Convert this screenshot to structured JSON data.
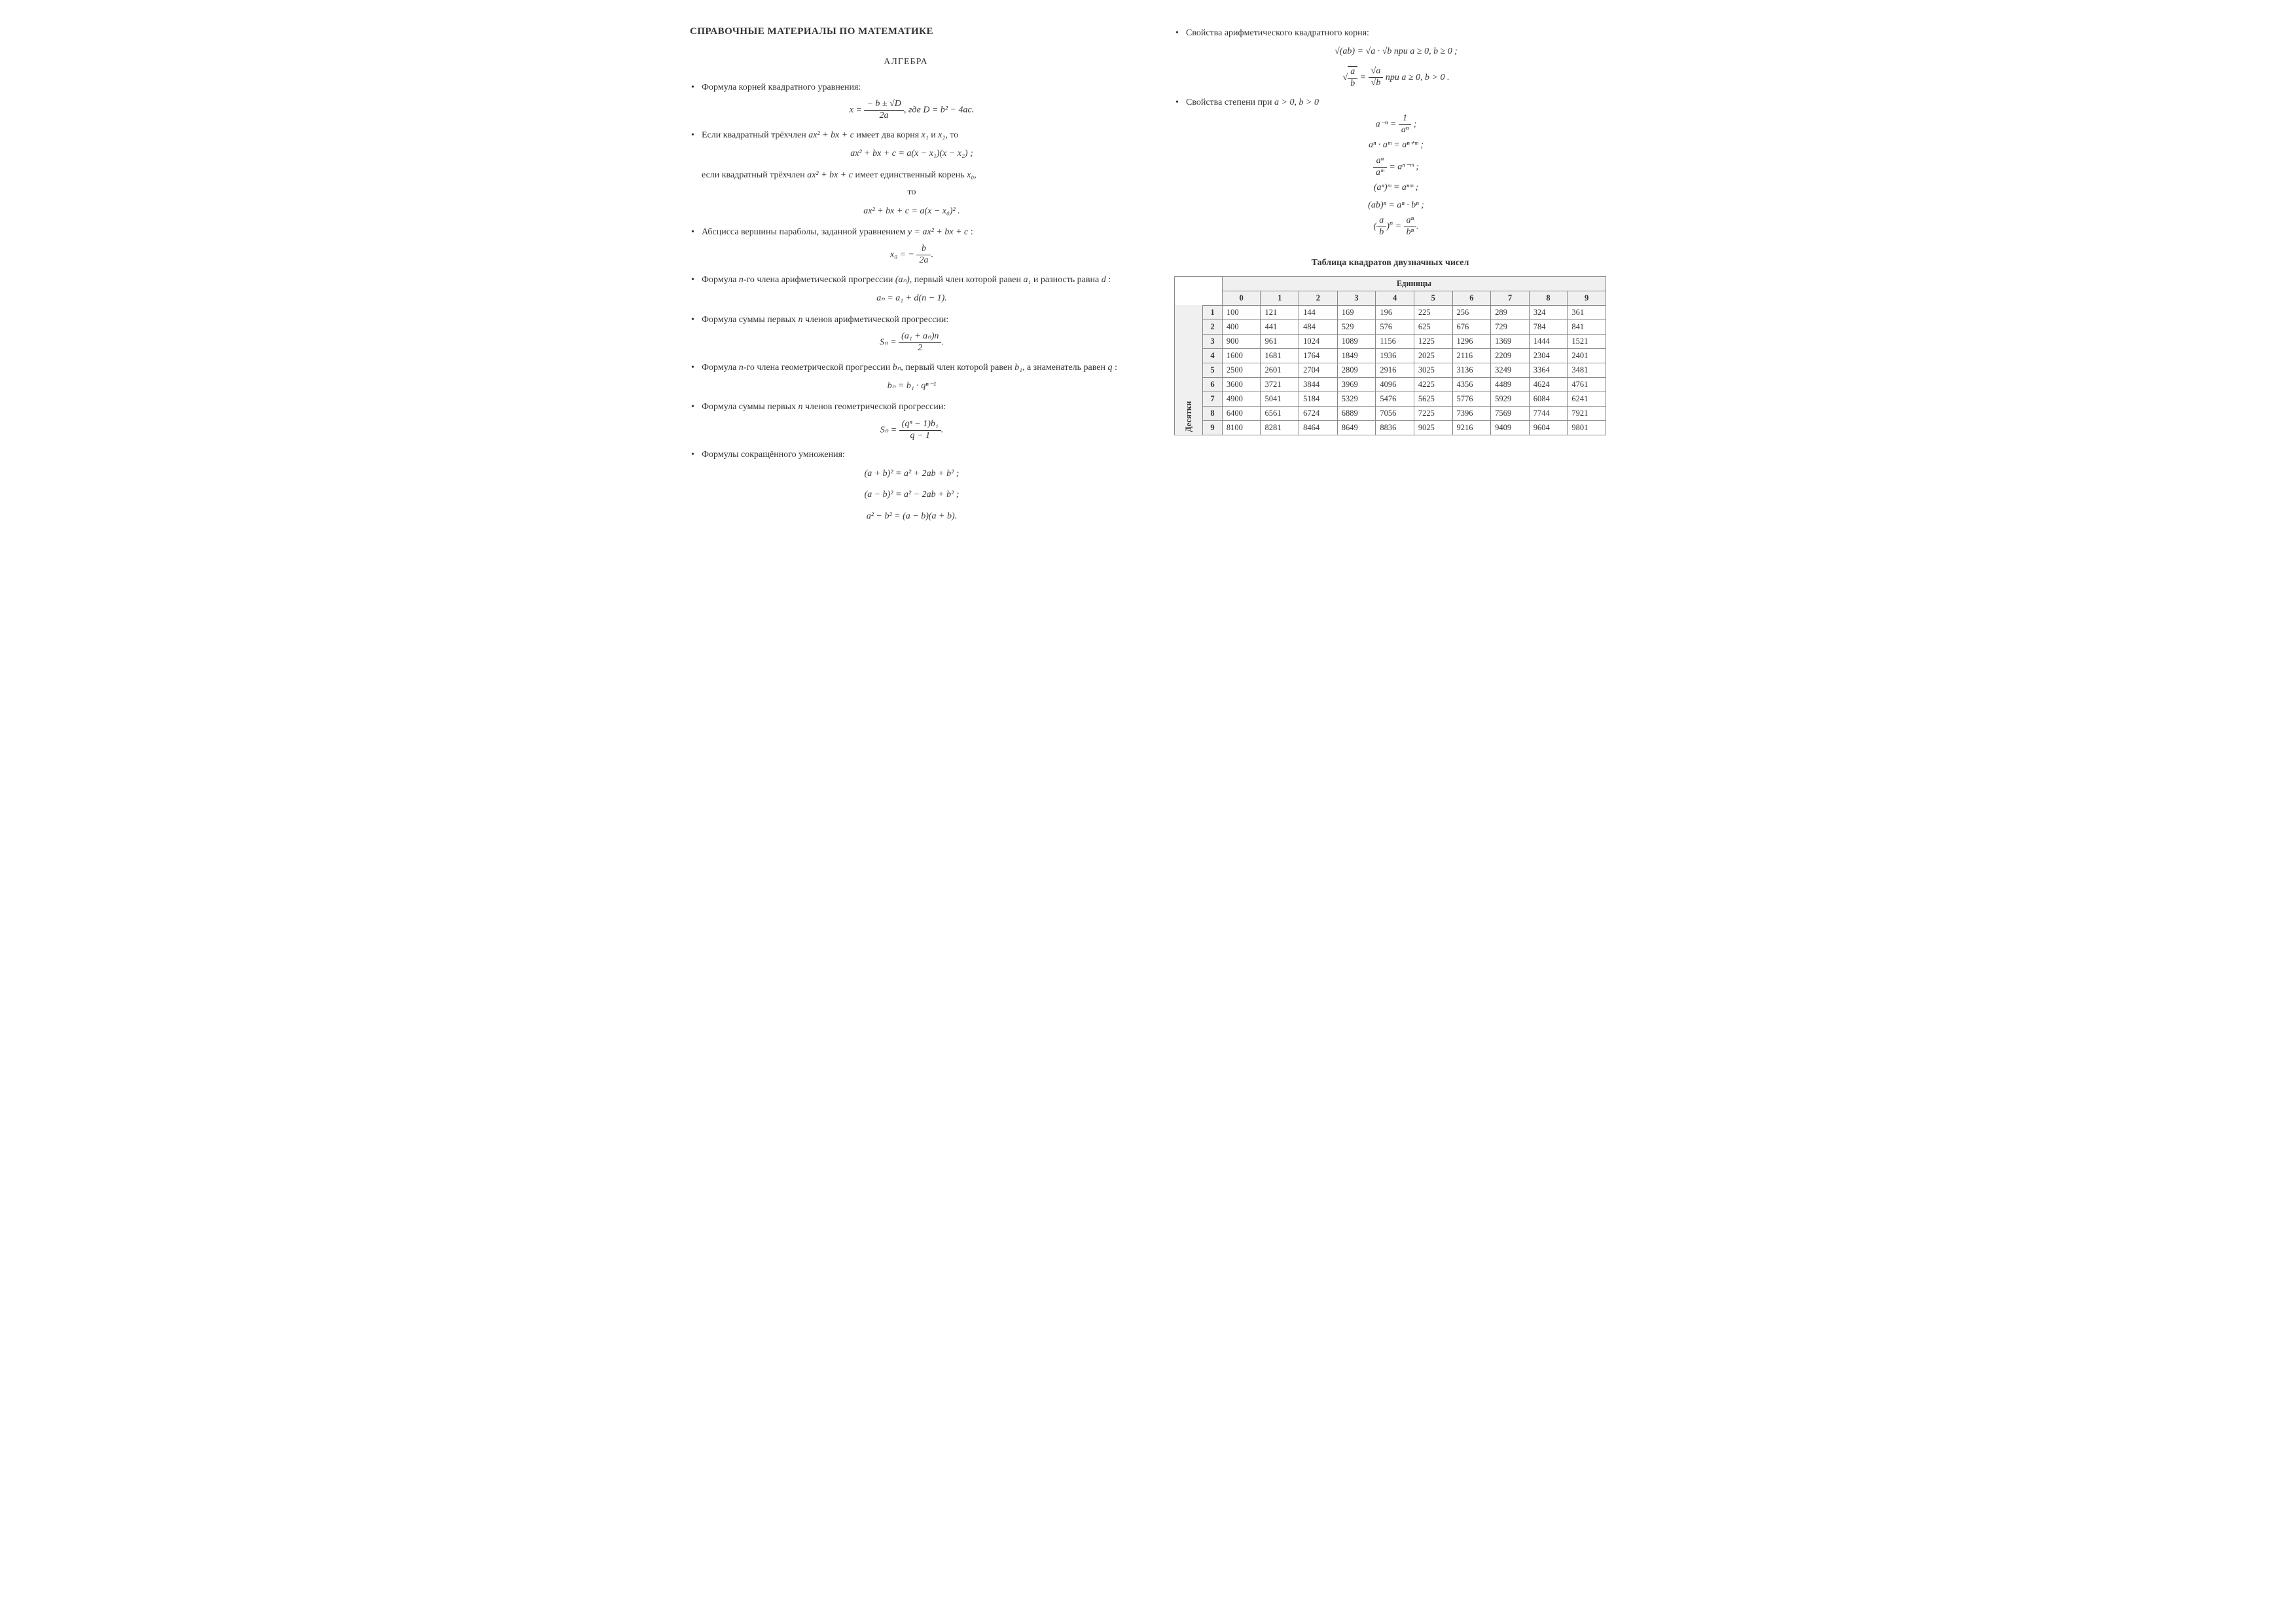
{
  "main_title": "СПРАВОЧНЫЕ МАТЕРИАЛЫ ПО МАТЕМАТИКЕ",
  "section_title": "АЛГЕБРА",
  "left": {
    "b1_intro": "Формула корней квадратного уравнения:",
    "b2_p1": "Если квадратный трёхчлен ",
    "b2_p2": " имеет два корня ",
    "b2_p3": " и ",
    "b2_p4": ", то",
    "b2_cont1": "если квадратный трёхчлен ",
    "b2_cont2": " имеет единственный корень ",
    "b2_cont3": ",",
    "b2_to": "то",
    "b3_p1": "Абсцисса вершины параболы, заданной уравнением ",
    "b3_p2": " :",
    "b4_p1": "Формула ",
    "b4_p2": "-го члена арифметической прогрессии ",
    "b4_p3": ", первый член которой равен ",
    "b4_p4": " и разность равна ",
    "b4_p5": " :",
    "b5_p1": "Формула суммы первых ",
    "b5_p2": " членов арифметической прогрессии:",
    "b6_p1": "Формула ",
    "b6_p2": "-го члена геометрической прогрессии ",
    "b6_p3": ", первый член которой равен ",
    "b6_p4": ", а знаменатель равен ",
    "b6_p5": " :",
    "b7_p1": "Формула суммы первых ",
    "b7_p2": " членов геометрической прогрессии:",
    "b8": "Формулы сокращённого умножения:"
  },
  "right": {
    "b1": "Свойства арифметического квадратного корня:",
    "b1_cond1": " при ",
    "b1_cond2": ", ",
    "b1_cond3": " ;",
    "b1_cond4": " при ",
    "b1_cond5": ", ",
    "b1_cond6": " .",
    "b2_p1": "Свойства степени при ",
    "b2_p2": ", "
  },
  "formulas": {
    "quad_x": "x =",
    "quad_num": "− b ± √D",
    "quad_den": "2a",
    "quad_where": ", где ",
    "quad_D": "D = b² − 4ac",
    "trinom": "ax² + bx + c",
    "x1": "x₁",
    "x2": "x₂",
    "x0": "x₀",
    "factor2": "ax² + bx + c = a(x − x₁)(x − x₂) ;",
    "factor1": "ax² + bx + c = a(x − x₀)² .",
    "parabola": "y = ax² + bx + c",
    "vertex_lhs": "x₀ = −",
    "vertex_num": "b",
    "vertex_den": "2a",
    "vertex_dot": ".",
    "n": "n",
    "an_par": "(aₙ)",
    "a1": "a₁",
    "d": "d",
    "arith_nth": "aₙ = a₁ + d(n − 1).",
    "arith_sum_lhs": "Sₙ =",
    "arith_sum_num": "(a₁ + aₙ)n",
    "arith_sum_den": "2",
    "arith_sum_dot": ".",
    "bn": "bₙ",
    "b1_": "b₁",
    "q": "q",
    "geom_nth": "bₙ = b₁ · qⁿ⁻¹",
    "geom_sum_lhs": "Sₙ =",
    "geom_sum_num": "(qⁿ − 1)b₁",
    "geom_sum_den": "q − 1",
    "geom_sum_dot": ".",
    "short1": "(a + b)² = a² + 2ab + b² ;",
    "short2": "(a − b)² = a² − 2ab + b² ;",
    "short3": "a² − b² = (a − b)(a + b).",
    "sqrt_prod": "√(ab) = √a · √b",
    "cond_a0": "a ≥ 0",
    "cond_b0": "b ≥ 0",
    "cond_bgt0": "b > 0",
    "sqrt_quot_lhs_num": "a",
    "sqrt_quot_lhs_den": "b",
    "sqrt_quot_rhs_num": "√a",
    "sqrt_quot_rhs_den": "√b",
    "pow_cond_a": "a > 0",
    "pow_cond_b": "b > 0",
    "pow1_lhs": "a⁻ⁿ =",
    "pow1_num": "1",
    "pow1_den": "aⁿ",
    "pow2": "aⁿ · aᵐ = aⁿ⁺ᵐ ;",
    "pow3_lhs_num": "aⁿ",
    "pow3_lhs_den": "aᵐ",
    "pow3_rhs": "= aⁿ⁻ᵐ ;",
    "pow4": "(aⁿ)ᵐ = aⁿᵐ ;",
    "pow5": "(ab)ⁿ = aⁿ · bⁿ ;",
    "pow6_lhs_num": "a",
    "pow6_lhs_den": "b",
    "pow6_rhs_num": "aⁿ",
    "pow6_rhs_den": "bⁿ",
    "semi": " ;",
    "dot": "."
  },
  "table": {
    "title": "Таблица квадратов двузначных чисел",
    "units_label": "Единицы",
    "tens_label": "Десятки",
    "col_headers": [
      "0",
      "1",
      "2",
      "3",
      "4",
      "5",
      "6",
      "7",
      "8",
      "9"
    ],
    "row_headers": [
      "1",
      "2",
      "3",
      "4",
      "5",
      "6",
      "7",
      "8",
      "9"
    ],
    "rows": [
      [
        100,
        121,
        144,
        169,
        196,
        225,
        256,
        289,
        324,
        361
      ],
      [
        400,
        441,
        484,
        529,
        576,
        625,
        676,
        729,
        784,
        841
      ],
      [
        900,
        961,
        1024,
        1089,
        1156,
        1225,
        1296,
        1369,
        1444,
        1521
      ],
      [
        1600,
        1681,
        1764,
        1849,
        1936,
        2025,
        2116,
        2209,
        2304,
        2401
      ],
      [
        2500,
        2601,
        2704,
        2809,
        2916,
        3025,
        3136,
        3249,
        3364,
        3481
      ],
      [
        3600,
        3721,
        3844,
        3969,
        4096,
        4225,
        4356,
        4489,
        4624,
        4761
      ],
      [
        4900,
        5041,
        5184,
        5329,
        5476,
        5625,
        5776,
        5929,
        6084,
        6241
      ],
      [
        6400,
        6561,
        6724,
        6889,
        7056,
        7225,
        7396,
        7569,
        7744,
        7921
      ],
      [
        8100,
        8281,
        8464,
        8649,
        8836,
        9025,
        9216,
        9409,
        9604,
        9801
      ]
    ],
    "header_bg": "#f0f0f0",
    "border_color": "#888888"
  },
  "colors": {
    "text": "#333333",
    "background": "#ffffff"
  }
}
